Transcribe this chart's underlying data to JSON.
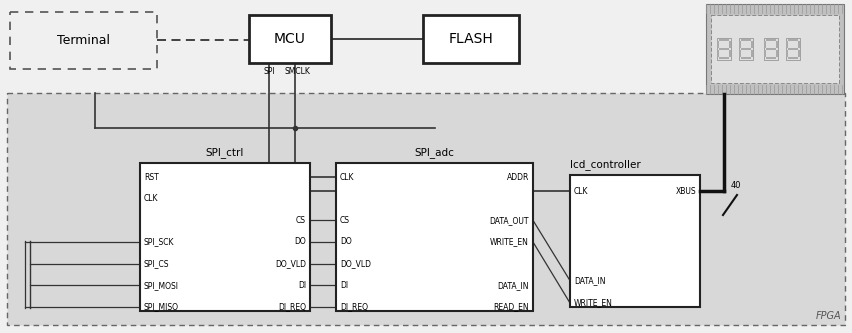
{
  "fig_width": 8.52,
  "fig_height": 3.33,
  "bg_light": "#f0f0f0",
  "bg_fpga": "#d8d8d8",
  "block_fill": "#ffffff",
  "terminal_label": "Terminal",
  "mcu_label": "MCU",
  "flash_label": "FLASH",
  "spi_ctrl_label": "SPI_ctrl",
  "spi_adc_label": "SPI_adc",
  "lcd_ctrl_label": "lcd_controller",
  "fpga_label": "FPGA",
  "spi_text": "SPI",
  "smclk_text": "SMCLK",
  "xbus_text": "XBUS",
  "num_40": "40",
  "spi_ctrl_ports_left": [
    "RST",
    "CLK",
    "",
    "SPI_SCK",
    "SPI_CS",
    "SPI_MOSI",
    "SPI_MISO"
  ],
  "spi_ctrl_ports_right": [
    "",
    "",
    "CS",
    "DO",
    "DO_VLD",
    "DI",
    "DI_REQ"
  ],
  "spi_adc_ports_left": [
    "CLK",
    "",
    "CS",
    "DO",
    "DO_VLD",
    "DI",
    "DI_REQ"
  ],
  "spi_adc_ports_right": [
    "ADDR",
    "",
    "DATA_OUT",
    "WRITE_EN",
    "",
    "DATA_IN",
    "READ_EN"
  ],
  "lcd_ports_left": [
    "CLK",
    "",
    "",
    "",
    "DATA_IN",
    "WRITE_EN"
  ],
  "wire_color": "#333333",
  "thick_wire": "#111111"
}
